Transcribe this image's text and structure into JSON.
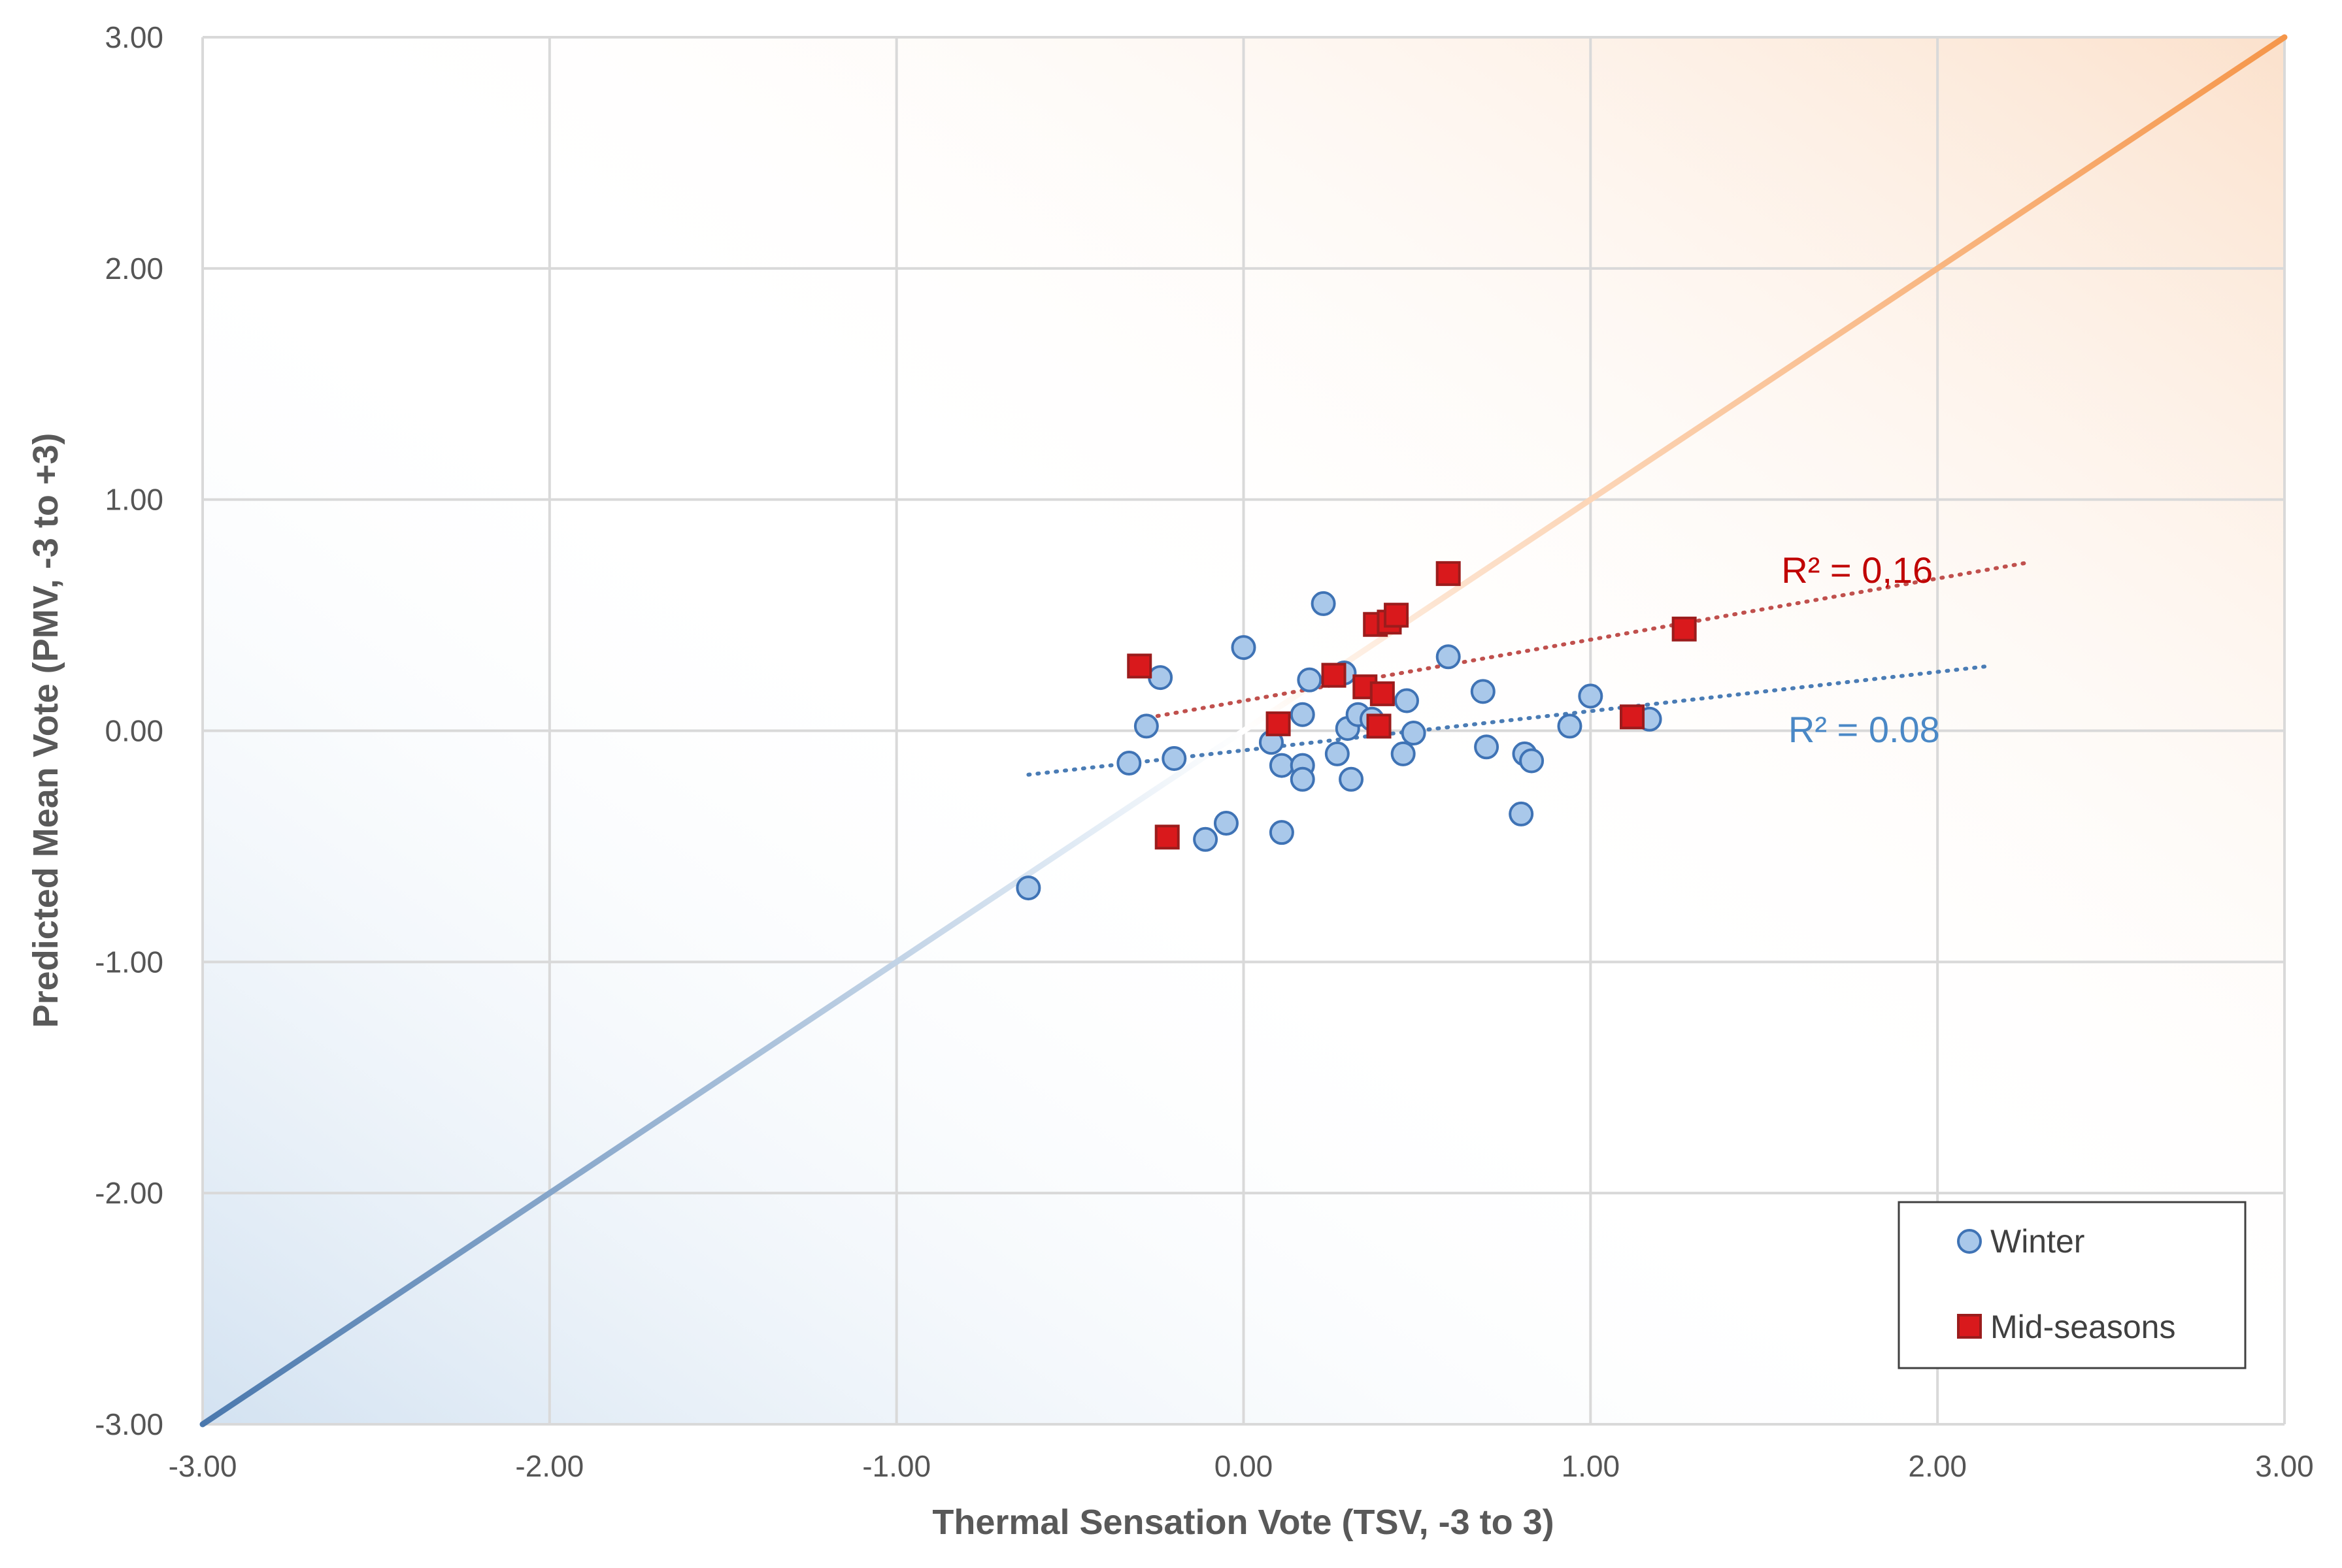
{
  "chart_data": {
    "type": "scatter",
    "xlabel": "Thermal Sensation Vote (TSV, -3 to 3)",
    "ylabel": "Predicted Mean Vote (PMV, -3 to +3)",
    "xlim": [
      -3,
      3
    ],
    "ylim": [
      -3,
      3
    ],
    "x_ticks": [
      "-3.00",
      "-2.00",
      "-1.00",
      "0.00",
      "1.00",
      "2.00",
      "3.00"
    ],
    "y_ticks": [
      "3.00",
      "2.00",
      "1.00",
      "0.00",
      "-1.00",
      "-2.00",
      "-3.00"
    ],
    "grid": true,
    "legend_position": "bottom-right",
    "reference_line": {
      "x": [
        -3,
        3
      ],
      "y": [
        -3,
        3
      ],
      "colors": [
        "#4a78ad",
        "#f5964a"
      ]
    },
    "series": [
      {
        "name": "Winter",
        "marker": "circle",
        "color": "#a9c8ea",
        "edge_color": "#3f73b5",
        "points": [
          [
            -0.62,
            -0.68
          ],
          [
            -0.33,
            -0.14
          ],
          [
            -0.28,
            0.02
          ],
          [
            -0.24,
            0.23
          ],
          [
            -0.2,
            -0.12
          ],
          [
            -0.11,
            -0.47
          ],
          [
            -0.05,
            -0.4
          ],
          [
            0.0,
            0.36
          ],
          [
            0.08,
            -0.05
          ],
          [
            0.11,
            -0.15
          ],
          [
            0.11,
            -0.44
          ],
          [
            0.17,
            -0.15
          ],
          [
            0.17,
            -0.21
          ],
          [
            0.17,
            0.07
          ],
          [
            0.19,
            0.22
          ],
          [
            0.23,
            0.55
          ],
          [
            0.27,
            -0.1
          ],
          [
            0.29,
            0.25
          ],
          [
            0.3,
            0.01
          ],
          [
            0.31,
            -0.21
          ],
          [
            0.33,
            0.07
          ],
          [
            0.37,
            0.05
          ],
          [
            0.46,
            -0.1
          ],
          [
            0.47,
            0.13
          ],
          [
            0.49,
            -0.01
          ],
          [
            0.59,
            0.32
          ],
          [
            0.69,
            0.17
          ],
          [
            0.7,
            -0.07
          ],
          [
            0.8,
            -0.36
          ],
          [
            0.81,
            -0.1
          ],
          [
            0.83,
            -0.13
          ],
          [
            0.94,
            0.02
          ],
          [
            1.0,
            0.15
          ],
          [
            1.17,
            0.05
          ]
        ],
        "trendline": {
          "x": [
            -0.62,
            2.15
          ],
          "y": [
            -0.19,
            0.28
          ],
          "color": "#4a7cb5",
          "r2_label": "R² = 0.08",
          "label_color": "#4a88c6"
        }
      },
      {
        "name": "Mid-seasons",
        "marker": "square",
        "color": "#d9191c",
        "edge_color": "#9b1c1c",
        "points": [
          [
            -0.3,
            0.28
          ],
          [
            -0.22,
            -0.46
          ],
          [
            0.1,
            0.03
          ],
          [
            0.26,
            0.24
          ],
          [
            0.35,
            0.19
          ],
          [
            0.38,
            0.46
          ],
          [
            0.39,
            0.02
          ],
          [
            0.4,
            0.16
          ],
          [
            0.42,
            0.47
          ],
          [
            0.44,
            0.5
          ],
          [
            0.59,
            0.68
          ],
          [
            1.12,
            0.06
          ],
          [
            1.27,
            0.44
          ]
        ],
        "trendline": {
          "x": [
            -0.3,
            2.27
          ],
          "y": [
            0.05,
            0.73
          ],
          "color": "#c0504d",
          "r2_label": "R² = 0,16",
          "label_color": "#c00000"
        }
      }
    ]
  }
}
